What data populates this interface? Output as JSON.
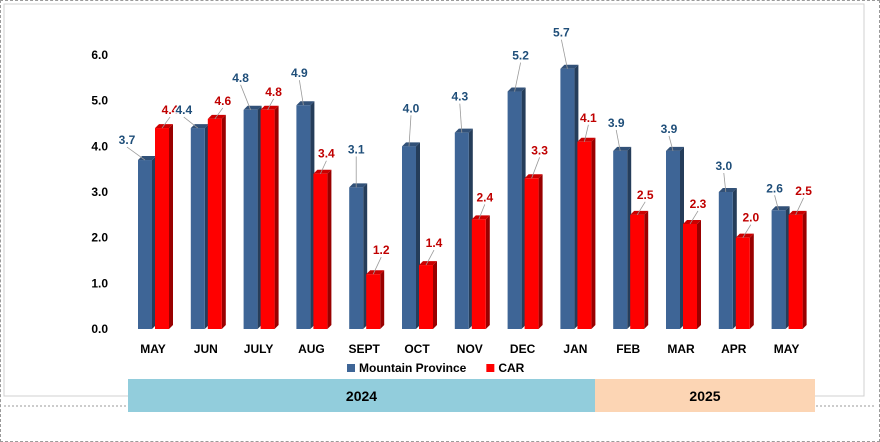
{
  "chart_data": {
    "type": "bar",
    "categories": [
      "MAY",
      "JUN",
      "JULY",
      "AUG",
      "SEPT",
      "OCT",
      "NOV",
      "DEC",
      "JAN",
      "FEB",
      "MAR",
      "APR",
      "MAY"
    ],
    "series": [
      {
        "name": "Mountain Province",
        "values": [
          3.7,
          4.4,
          4.8,
          4.9,
          3.1,
          4.0,
          4.3,
          5.2,
          5.7,
          3.9,
          3.9,
          3.0,
          2.6
        ]
      },
      {
        "name": "CAR",
        "values": [
          4.4,
          4.6,
          4.8,
          3.4,
          1.2,
          1.4,
          2.4,
          3.3,
          4.1,
          2.5,
          2.3,
          2.0,
          2.5
        ]
      }
    ],
    "title": "",
    "xlabel": "",
    "ylabel": "",
    "ylim": [
      0,
      6.0
    ],
    "yticks": [
      "0.0",
      "1.0",
      "2.0",
      "3.0",
      "4.0",
      "5.0",
      "6.0"
    ],
    "legend_position": "bottom",
    "grid": false,
    "year_groups": [
      {
        "label": "2024",
        "from": 0,
        "to": 8,
        "color": "#92cddc"
      },
      {
        "label": "2025",
        "from": 9,
        "to": 12,
        "color": "#fcd5b4"
      }
    ],
    "colors": {
      "Mountain Province": "#3e6596",
      "CAR": "#ff0000",
      "label_mountain": "#1f4e79",
      "label_car": "#c00000"
    }
  }
}
